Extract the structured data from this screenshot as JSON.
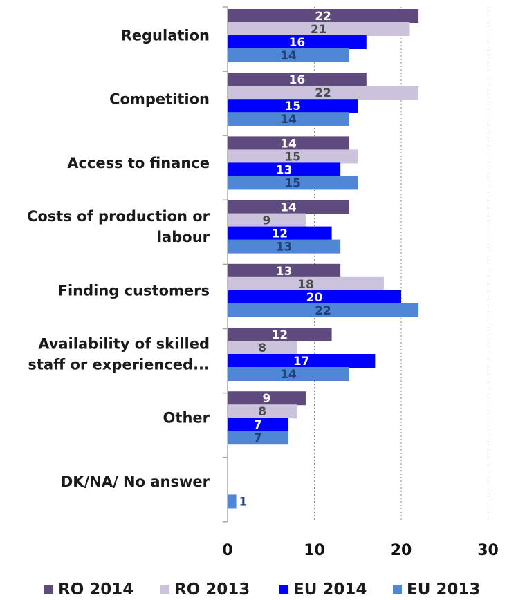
{
  "chart_data": {
    "type": "bar",
    "orientation": "horizontal",
    "categories": [
      [
        "Regulation"
      ],
      [
        "Competition"
      ],
      [
        "Access to finance"
      ],
      [
        "Costs of production or",
        "labour"
      ],
      [
        "Finding customers"
      ],
      [
        "Availability of skilled",
        "staff or experienced..."
      ],
      [
        "Other"
      ],
      [
        "DK/NA/ No answer"
      ]
    ],
    "series": [
      {
        "name": "RO 2014",
        "color": "#5f4a7e",
        "label_color": "#ffffff",
        "values": [
          22,
          16,
          14,
          14,
          13,
          12,
          9,
          null
        ]
      },
      {
        "name": "RO 2013",
        "color": "#cbc3dc",
        "label_color": "#4a4a4a",
        "values": [
          21,
          22,
          15,
          9,
          18,
          8,
          8,
          null
        ]
      },
      {
        "name": "EU 2014",
        "color": "#0000ff",
        "label_color": "#ffffff",
        "values": [
          16,
          15,
          13,
          12,
          20,
          17,
          7,
          null
        ]
      },
      {
        "name": "EU 2013",
        "color": "#4f86d6",
        "label_color": "#1f3f78",
        "values": [
          14,
          14,
          15,
          13,
          22,
          14,
          7,
          1
        ]
      }
    ],
    "xlim": [
      0,
      30
    ],
    "xticks": [
      "0",
      "10",
      "20",
      "30"
    ],
    "gridlines": "vertical dashed",
    "legend_position": "bottom"
  }
}
